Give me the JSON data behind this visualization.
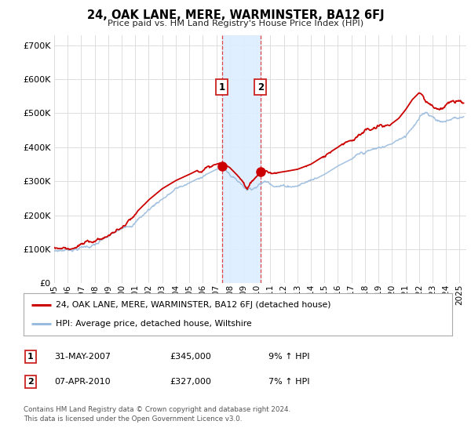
{
  "title": "24, OAK LANE, MERE, WARMINSTER, BA12 6FJ",
  "subtitle": "Price paid vs. HM Land Registry's House Price Index (HPI)",
  "ytick_values": [
    0,
    100000,
    200000,
    300000,
    400000,
    500000,
    600000,
    700000
  ],
  "ylim": [
    0,
    730000
  ],
  "xlim_start": 1995.0,
  "xlim_end": 2025.5,
  "background_color": "#ffffff",
  "grid_color": "#dddddd",
  "red_color": "#cc0000",
  "blue_color": "#99bbdd",
  "shade_color": "#ddeeff",
  "transaction1_x": 2007.42,
  "transaction1_y": 345000,
  "transaction2_x": 2010.27,
  "transaction2_y": 327000,
  "legend_line1": "24, OAK LANE, MERE, WARMINSTER, BA12 6FJ (detached house)",
  "legend_line2": "HPI: Average price, detached house, Wiltshire",
  "table_row1": [
    "1",
    "31-MAY-2007",
    "£345,000",
    "9% ↑ HPI"
  ],
  "table_row2": [
    "2",
    "07-APR-2010",
    "£327,000",
    "7% ↑ HPI"
  ],
  "footer": "Contains HM Land Registry data © Crown copyright and database right 2024.\nThis data is licensed under the Open Government Licence v3.0.",
  "xtick_years": [
    1995,
    1996,
    1997,
    1998,
    1999,
    2000,
    2001,
    2002,
    2003,
    2004,
    2005,
    2006,
    2007,
    2008,
    2009,
    2010,
    2011,
    2012,
    2013,
    2014,
    2015,
    2016,
    2017,
    2018,
    2019,
    2020,
    2021,
    2022,
    2023,
    2024,
    2025
  ]
}
